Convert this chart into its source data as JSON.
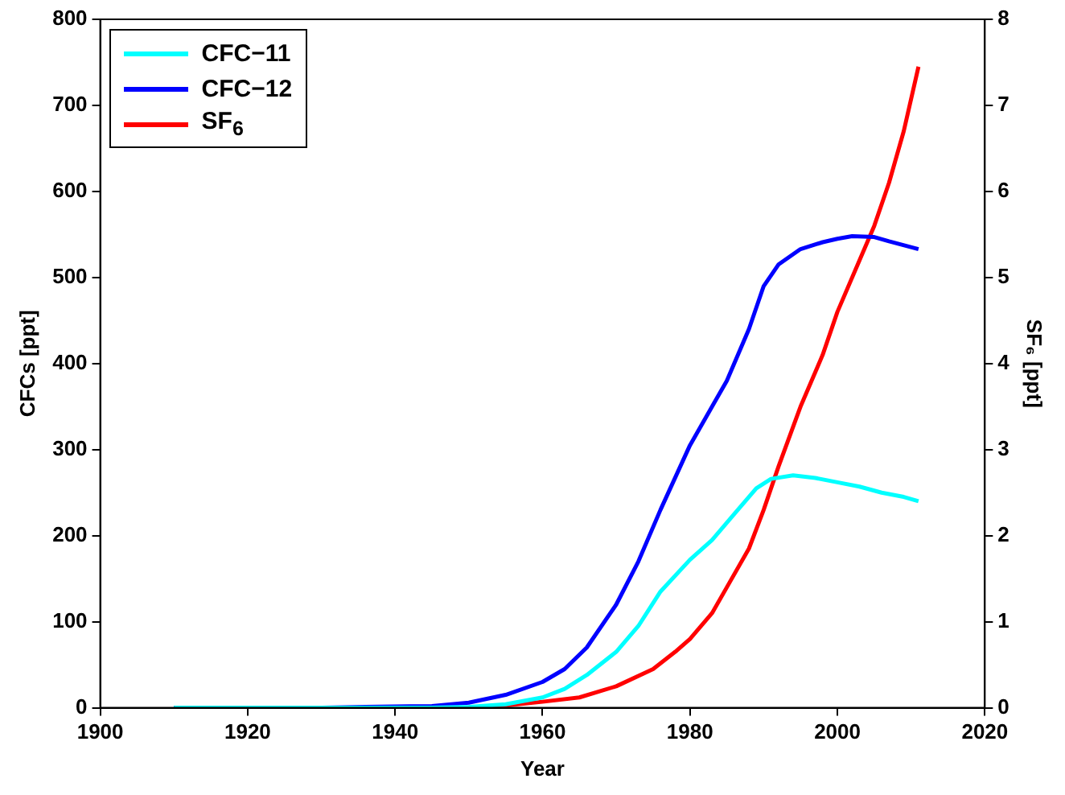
{
  "chart_data": {
    "type": "line",
    "xlabel": "Year",
    "ylabel": "CFCs [ppt]",
    "y2label": "SF₆ [ppt]",
    "xlim": [
      1900,
      2020
    ],
    "xticks": [
      1900,
      1920,
      1940,
      1960,
      1980,
      2000,
      2020
    ],
    "ylim": [
      0,
      800
    ],
    "yticks": [
      0,
      100,
      200,
      300,
      400,
      500,
      600,
      700,
      800
    ],
    "y2lim": [
      0,
      8
    ],
    "y2ticks": [
      0,
      1,
      2,
      3,
      4,
      5,
      6,
      7,
      8
    ],
    "grid": false,
    "legend": "top left",
    "marker": "none",
    "line_style": "solid",
    "series": [
      {
        "name": "CFC−11",
        "color": "#00ffff",
        "x": [
          1910,
          1945,
          1950,
          1955,
          1960,
          1963,
          1966,
          1970,
          1973,
          1976,
          1980,
          1983,
          1986,
          1989,
          1991,
          1994,
          1997,
          2000,
          2003,
          2006,
          2009,
          2011
        ],
        "values": [
          0,
          0,
          1,
          4,
          12,
          22,
          38,
          65,
          95,
          135,
          172,
          195,
          225,
          255,
          266,
          270,
          267,
          262,
          257,
          250,
          245,
          240
        ]
      },
      {
        "name": "CFC−12",
        "color": "#0000ff",
        "x": [
          1910,
          1930,
          1936,
          1945,
          1950,
          1955,
          1960,
          1963,
          1966,
          1970,
          1973,
          1976,
          1980,
          1983,
          1985,
          1988,
          1990,
          1992,
          1995,
          1998,
          2000,
          2002,
          2005,
          2007,
          2011
        ],
        "values": [
          0,
          0,
          1,
          2,
          6,
          15,
          30,
          45,
          70,
          120,
          170,
          230,
          305,
          350,
          380,
          440,
          490,
          515,
          533,
          541,
          545,
          548,
          547,
          542,
          533
        ]
      },
      {
        "name": "SF$_{6}$",
        "color": "#ff0000",
        "axis": "y2",
        "x": [
          1910,
          1952,
          1960,
          1965,
          1970,
          1975,
          1978,
          1980,
          1983,
          1985,
          1988,
          1990,
          1992,
          1995,
          1998,
          2000,
          2003,
          2005,
          2007,
          2009,
          2011
        ],
        "values": [
          0,
          0,
          0.07,
          0.12,
          0.25,
          0.45,
          0.65,
          0.8,
          1.1,
          1.4,
          1.85,
          2.3,
          2.8,
          3.5,
          4.1,
          4.6,
          5.2,
          5.6,
          6.1,
          6.7,
          7.45
        ]
      }
    ]
  }
}
